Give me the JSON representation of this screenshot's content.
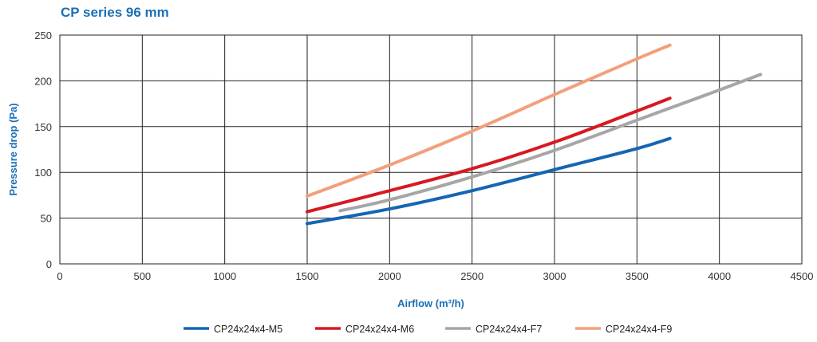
{
  "chart_data": {
    "type": "line",
    "title": "CP series 96 mm",
    "xlabel": "Airflow (m³/h)",
    "ylabel": "Pressure drop (Pa)",
    "xlim": [
      0,
      4500
    ],
    "ylim": [
      0,
      250
    ],
    "xticks": [
      "0",
      "500",
      "1000",
      "1500",
      "2000",
      "2500",
      "3000",
      "3500",
      "4000",
      "4500"
    ],
    "yticks": [
      "0",
      "50",
      "100",
      "150",
      "200",
      "250"
    ],
    "grid": true,
    "legend_position": "bottom",
    "series": [
      {
        "name": "CP24x24x4-M5",
        "color": "#1565b4",
        "x": [
          1500,
          2000,
          2500,
          3000,
          3500,
          3700
        ],
        "y": [
          44,
          60,
          80,
          103,
          126,
          137
        ]
      },
      {
        "name": "CP24x24x4-M6",
        "color": "#d71920",
        "x": [
          1500,
          2000,
          2500,
          3000,
          3500,
          3700
        ],
        "y": [
          57,
          80,
          104,
          133,
          167,
          181
        ]
      },
      {
        "name": "CP24x24x4-F7",
        "color": "#a6a6a6",
        "x": [
          1700,
          2000,
          2500,
          3000,
          3500,
          4000,
          4250
        ],
        "y": [
          58,
          70,
          95,
          124,
          157,
          190,
          207
        ]
      },
      {
        "name": "CP24x24x4-F9",
        "color": "#f2a07b",
        "x": [
          1500,
          2000,
          2500,
          3000,
          3500,
          3700
        ],
        "y": [
          74,
          108,
          145,
          185,
          224,
          239
        ]
      }
    ]
  }
}
